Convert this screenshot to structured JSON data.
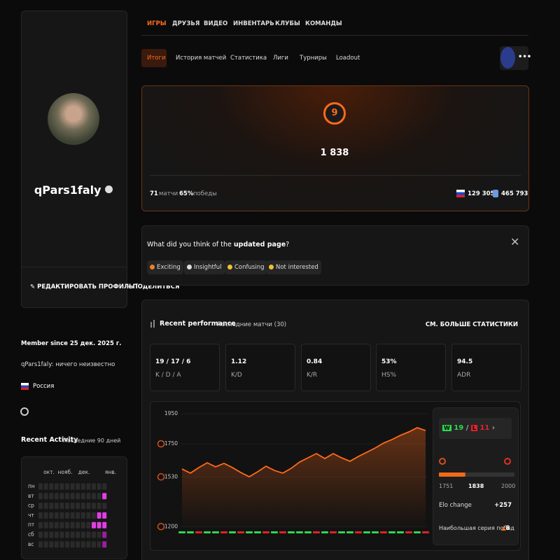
{
  "profile": {
    "name": "qPars1faly",
    "edit": "РЕДАКТИРОВАТЬ ПРОФИЛЬ",
    "share": "ПОДЕЛИТЬСЯ",
    "member_since": "Member since 25 дек. 2025 г.",
    "bio": "qPars1faly: ничего неизвестно",
    "country": "Россия"
  },
  "activity": {
    "title": "Recent Activity",
    "subtitle": "Последние 90 дней",
    "months": [
      "окт.",
      "нояб.",
      "дек.",
      "янв."
    ],
    "days": [
      "пн",
      "вт",
      "ср",
      "чт",
      "пт",
      "сб",
      "вс"
    ],
    "levels": [
      [
        0,
        0,
        0,
        0,
        0,
        0,
        0,
        0,
        0,
        0,
        0,
        0,
        0
      ],
      [
        0,
        0,
        0,
        0,
        0,
        0,
        0,
        0,
        0,
        0,
        0,
        0,
        2
      ],
      [
        0,
        0,
        0,
        0,
        0,
        0,
        0,
        0,
        0,
        0,
        0,
        0,
        0
      ],
      [
        0,
        0,
        0,
        0,
        0,
        0,
        0,
        0,
        0,
        0,
        0,
        2,
        2
      ],
      [
        0,
        0,
        0,
        0,
        0,
        0,
        0,
        0,
        0,
        0,
        2,
        2,
        2
      ],
      [
        0,
        0,
        0,
        0,
        0,
        0,
        0,
        0,
        0,
        0,
        0,
        0,
        1
      ],
      [
        0,
        0,
        0,
        0,
        0,
        0,
        0,
        0,
        0,
        0,
        0,
        0,
        1
      ]
    ],
    "colors": [
      "#2b2b2b",
      "#9a1fa0",
      "#e23ee6"
    ]
  },
  "nav": {
    "tabs": [
      "ИГРЫ",
      "ДРУЗЬЯ",
      "ВИДЕО",
      "ИНВЕНТАРЬ",
      "КЛУБЫ",
      "КОМАНДЫ"
    ],
    "subtabs": [
      "Итоги",
      "История матчей",
      "Статистика",
      "Лиги",
      "Турниры",
      "Loadout"
    ]
  },
  "summary": {
    "level": 9,
    "elo": "1 838",
    "matches": 71,
    "matches_label": "матчи",
    "winrate": "65%",
    "winrate_label": "победы",
    "region_rank": "129 305",
    "global_rank": "465 793"
  },
  "feedback": {
    "question_pre": "What did you think of the ",
    "question_bold": "updated page",
    "question_post": "?",
    "options": [
      "Exciting",
      "Insightful",
      "Confusing",
      "Not interested"
    ]
  },
  "performance": {
    "title": "Recent performance",
    "subtitle": "Последние матчи (30)",
    "more": "СМ. БОЛЬШЕ СТАТИСТИКИ",
    "stats": [
      {
        "value": "19 / 17 / 6",
        "label": "K / D / A"
      },
      {
        "value": "1.12",
        "label": "K/D"
      },
      {
        "value": "0.84",
        "label": "K/R"
      },
      {
        "value": "53%",
        "label": "HS%"
      },
      {
        "value": "94.5",
        "label": "ADR"
      }
    ],
    "chart": {
      "type": "line",
      "color": "#ff6a1a",
      "values": [
        1583,
        1555,
        1592,
        1624,
        1597,
        1620,
        1592,
        1559,
        1531,
        1564,
        1601,
        1573,
        1555,
        1587,
        1629,
        1657,
        1685,
        1652,
        1685,
        1657,
        1634,
        1666,
        1694,
        1722,
        1755,
        1778,
        1806,
        1829,
        1857,
        1838
      ],
      "ylim": [
        1180,
        1950
      ],
      "yticks": [
        1950,
        1750,
        1530,
        1200
      ],
      "results": [
        "W",
        "W",
        "L",
        "W",
        "W",
        "L",
        "W",
        "L",
        "W",
        "W",
        "L",
        "W",
        "L",
        "W",
        "W",
        "W",
        "L",
        "W",
        "L",
        "W",
        "W",
        "L",
        "W",
        "W",
        "L",
        "W",
        "W",
        "L",
        "W",
        "L"
      ],
      "result_colors": {
        "W": "#2fd74f",
        "L": "#e3202c"
      }
    },
    "side": {
      "w": "W",
      "wins": 19,
      "separator": "/",
      "l": "L",
      "losses": 11,
      "range_min": 1751,
      "current": 1838,
      "range_max": 2000,
      "elo_change_label": "Elo change",
      "elo_change": "+257",
      "streak_label": "Наибольшая серия побед",
      "streak": 8
    }
  }
}
